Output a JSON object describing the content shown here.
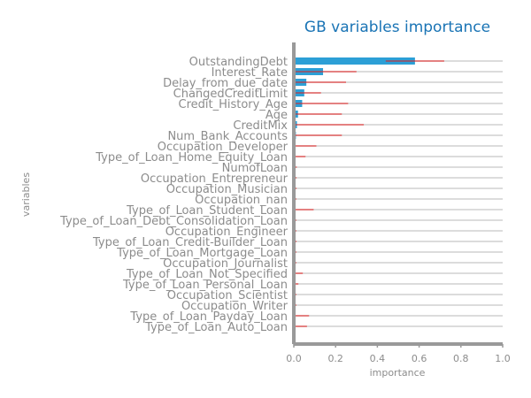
{
  "chart_data": {
    "type": "bar",
    "orientation": "horizontal",
    "title": "GB variables importance",
    "xlabel": "importance",
    "ylabel": "variables",
    "xlim": [
      0.0,
      1.0
    ],
    "xticks": [
      "0.0",
      "0.2",
      "0.4",
      "0.6",
      "0.8",
      "1.0"
    ],
    "grid": true,
    "categories": [
      "OutstandingDebt",
      "Interest_Rate",
      "Delay_from_due_date",
      "ChangedCreditLimit",
      "Credit_History_Age",
      "Age",
      "CreditMix",
      "Num_Bank_Accounts",
      "Occupation_Developer",
      "Type_of_Loan_Home_Equity_Loan",
      "NumofLoan",
      "Occupation_Entrepreneur",
      "Occupation_Musician",
      "Occupation_nan",
      "Type_of_Loan_Student_Loan",
      "Type_of_Loan_Debt_Consolidation_Loan",
      "Occupation_Engineer",
      "Type_of_Loan_Credit-Builder_Loan",
      "Type_of_Loan_Mortgage_Loan",
      "Occupation_Journalist",
      "Type_of_Loan_Not_Specified",
      "Type_of_Loan_Personal_Loan",
      "Occupation_Scientist",
      "Occupation_Writer",
      "Type_of_Loan_Payday_Loan",
      "Type_of_Loan_Auto_Loan"
    ],
    "values": [
      0.58,
      0.14,
      0.06,
      0.05,
      0.04,
      0.02,
      0.015,
      0.01,
      0.008,
      0.006,
      0.004,
      0.003,
      0.003,
      0.002,
      0.005,
      0.002,
      0.002,
      0.003,
      0.002,
      0.002,
      0.003,
      0.002,
      0.002,
      0.002,
      0.003,
      0.003
    ],
    "errors": [
      0.14,
      0.16,
      0.19,
      0.08,
      0.22,
      0.21,
      0.32,
      0.22,
      0.1,
      0.05,
      0.01,
      0.01,
      0.01,
      0.01,
      0.09,
      0.01,
      0.01,
      0.01,
      0.01,
      0.01,
      0.04,
      0.02,
      0.01,
      0.01,
      0.07,
      0.06
    ],
    "colors": {
      "bar": "#2c9fd6",
      "error": "#e01b1b",
      "grid": "#d0d0d0",
      "axis": "#999999",
      "title": "#1a74b5",
      "text": "#8c8c8c"
    }
  }
}
